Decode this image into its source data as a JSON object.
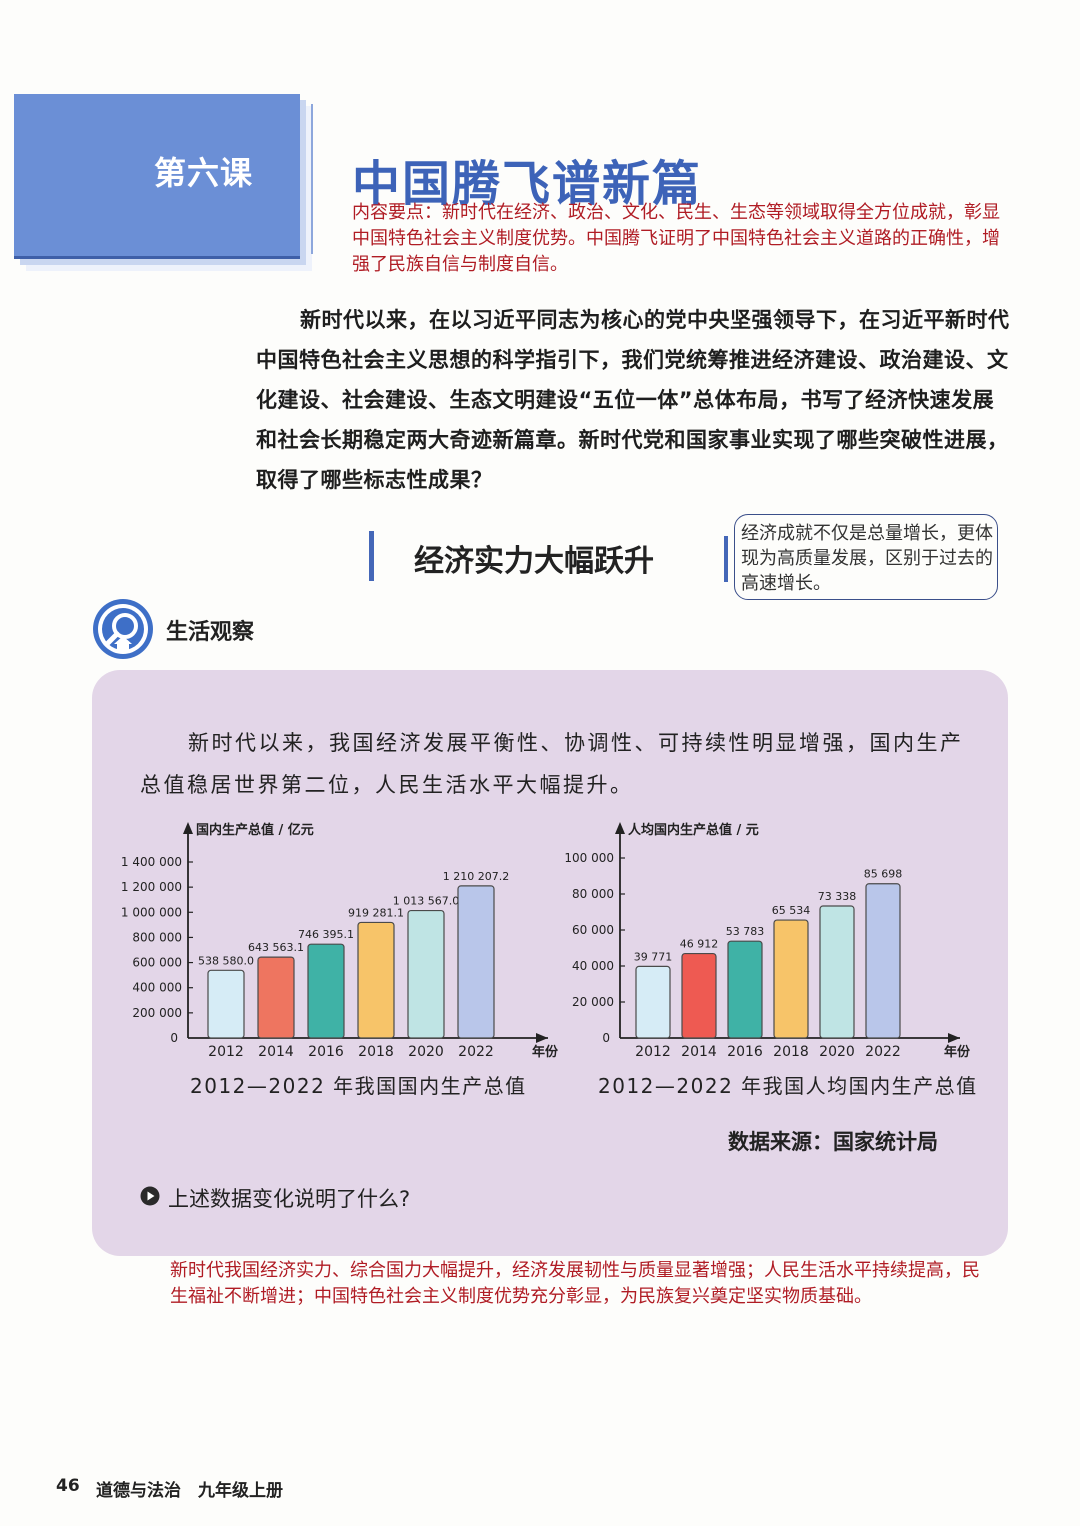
{
  "lesson": {
    "number_label": "第六课",
    "title": "中国腾飞谱新篇",
    "key_points": "内容要点：新时代在经济、政治、文化、民生、生态等领域取得全方位成就，彰显中国特色社会主义制度优势。中国腾飞证明了中国特色社会主义道路的正确性，增强了民族自信与制度自信。"
  },
  "intro_paragraph": "新时代以来，在以习近平同志为核心的党中央坚强领导下，在习近平新时代中国特色社会主义思想的科学指引下，我们党统筹推进经济建设、政治建设、文化建设、社会建设、生态文明建设“五位一体”总体布局，书写了经济快速发展和社会长期稳定两大奇迹新篇章。新时代党和国家事业实现了哪些突破性进展，取得了哪些标志性成果？",
  "section": {
    "title": "经济实力大幅跃升",
    "side_note": "经济成就不仅是总量增长，更体现为高质量发展，区别于过去的高速增长。"
  },
  "observation": {
    "label": "生活观察",
    "text": "新时代以来，我国经济发展平衡性、协调性、可持续性明显增强，国内生产总值稳居世界第二位，人民生活水平大幅提升。",
    "source": "数据来源：国家统计局",
    "question": "上述数据变化说明了什么?",
    "answer": "新时代我国经济实力、综合国力大幅提升，经济发展韧性与质量显著增强；人民生活水平持续提高，民生福祉不断增进；中国特色社会主义制度优势充分彰显，为民族复兴奠定坚实物质基础。"
  },
  "chart_data": [
    {
      "type": "bar",
      "ylabel": "国内生产总值 / 亿元",
      "xlabel": "年份",
      "caption": "2012—2022 年我国国内生产总值",
      "categories": [
        "2012",
        "2014",
        "2016",
        "2018",
        "2020",
        "2022"
      ],
      "values": [
        538580.0,
        643563.1,
        746395.1,
        919281.1,
        1013567.0,
        1210207.2
      ],
      "value_labels": [
        "538 580.0",
        "643 563.1",
        "746 395.1",
        "919 281.1",
        "1 013 567.0",
        "1 210 207.2"
      ],
      "ylim": [
        0,
        1400000
      ],
      "yticks": [
        200000,
        400000,
        600000,
        800000,
        1000000,
        1200000,
        1400000
      ],
      "ytick_labels": [
        "200 000",
        "400 000",
        "600 000",
        "800 000",
        "1 000 000",
        "1 200 000",
        "1 400 000"
      ],
      "zero_label": "0",
      "bar_colors": [
        "#d6ecf6",
        "#ee7560",
        "#3fb2a6",
        "#f7c469",
        "#bfe4e4",
        "#b9c6ea"
      ],
      "grid": false
    },
    {
      "type": "bar",
      "ylabel": "人均国内生产总值 / 元",
      "xlabel": "年份",
      "caption": "2012—2022 年我国人均国内生产总值",
      "categories": [
        "2012",
        "2014",
        "2016",
        "2018",
        "2020",
        "2022"
      ],
      "values": [
        39771,
        46912,
        53783,
        65534,
        73338,
        85698
      ],
      "value_labels": [
        "39 771",
        "46 912",
        "53 783",
        "65 534",
        "73 338",
        "85 698"
      ],
      "ylim": [
        0,
        100000
      ],
      "yticks": [
        20000,
        40000,
        60000,
        80000,
        100000
      ],
      "ytick_labels": [
        "20 000",
        "40 000",
        "60 000",
        "80 000",
        "100 000"
      ],
      "zero_label": "0",
      "bar_colors": [
        "#d6ecf6",
        "#ee5a52",
        "#3fb2a6",
        "#f7c469",
        "#bfe4e4",
        "#b9c6ea"
      ],
      "grid": false
    }
  ],
  "footer": {
    "page_number": "46",
    "book": "道德与法治　九年级上册"
  },
  "colors": {
    "accent_blue": "#3d63b8",
    "answer_red": "#b01c24",
    "panel_purple": "#e3d6e8"
  }
}
